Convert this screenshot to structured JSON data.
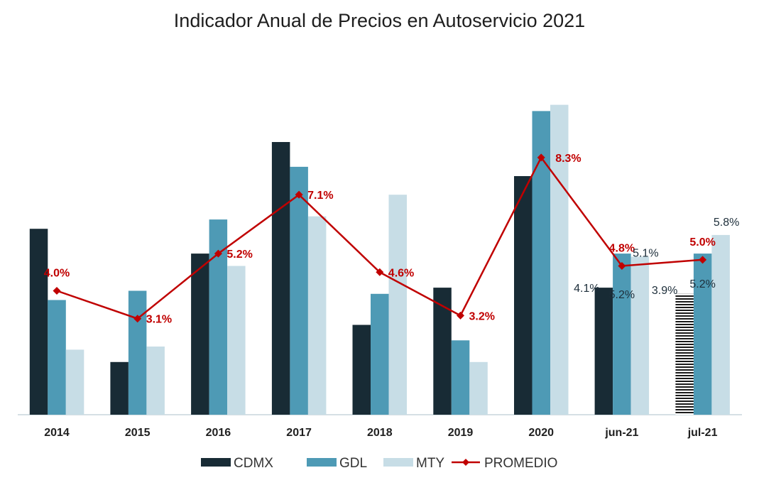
{
  "chart_data": {
    "type": "bar",
    "title": "Indicador Anual de Precios en Autoservicio 2021",
    "categories": [
      "2014",
      "2015",
      "2016",
      "2017",
      "2018",
      "2019",
      "2020",
      "jun-21",
      "jul-21"
    ],
    "series": [
      {
        "name": "CDMX",
        "kind": "bar",
        "color": "#182b35",
        "values": [
          6.0,
          1.7,
          5.2,
          8.8,
          2.9,
          4.1,
          7.7,
          4.1,
          3.9
        ]
      },
      {
        "name": "GDL",
        "kind": "bar",
        "color": "#4e9ab5",
        "values": [
          3.7,
          4.0,
          6.3,
          8.0,
          3.9,
          2.4,
          9.8,
          5.2,
          5.2
        ]
      },
      {
        "name": "MTY",
        "kind": "bar",
        "color": "#c7dde6",
        "values": [
          2.1,
          2.2,
          4.8,
          6.4,
          7.1,
          1.7,
          10.0,
          5.1,
          5.8
        ]
      },
      {
        "name": "PROMEDIO",
        "kind": "line",
        "color": "#c00000",
        "values": [
          4.0,
          3.1,
          5.2,
          7.1,
          4.6,
          3.2,
          8.3,
          4.8,
          5.0
        ]
      }
    ],
    "data_labels": {
      "PROMEDIO": [
        "4.0%",
        "3.1%",
        "5.2%",
        "7.1%",
        "4.6%",
        "3.2%",
        "8.3%",
        "4.8%",
        "5.0%"
      ],
      "CDMX": {
        "jun-21": "4.1%",
        "jul-21": "3.9%"
      },
      "GDL": {
        "jun-21": "5.2%",
        "jul-21": "5.2%"
      },
      "MTY": {
        "jun-21": "5.1%",
        "jul-21": "5.8%"
      }
    },
    "ylim": [
      0,
      11
    ],
    "y_axis_visible": false,
    "grid": false,
    "legend": [
      "CDMX",
      "GDL",
      "MTY",
      "PROMEDIO"
    ],
    "legend_position": "bottom",
    "xlabel": "",
    "ylabel": ""
  }
}
